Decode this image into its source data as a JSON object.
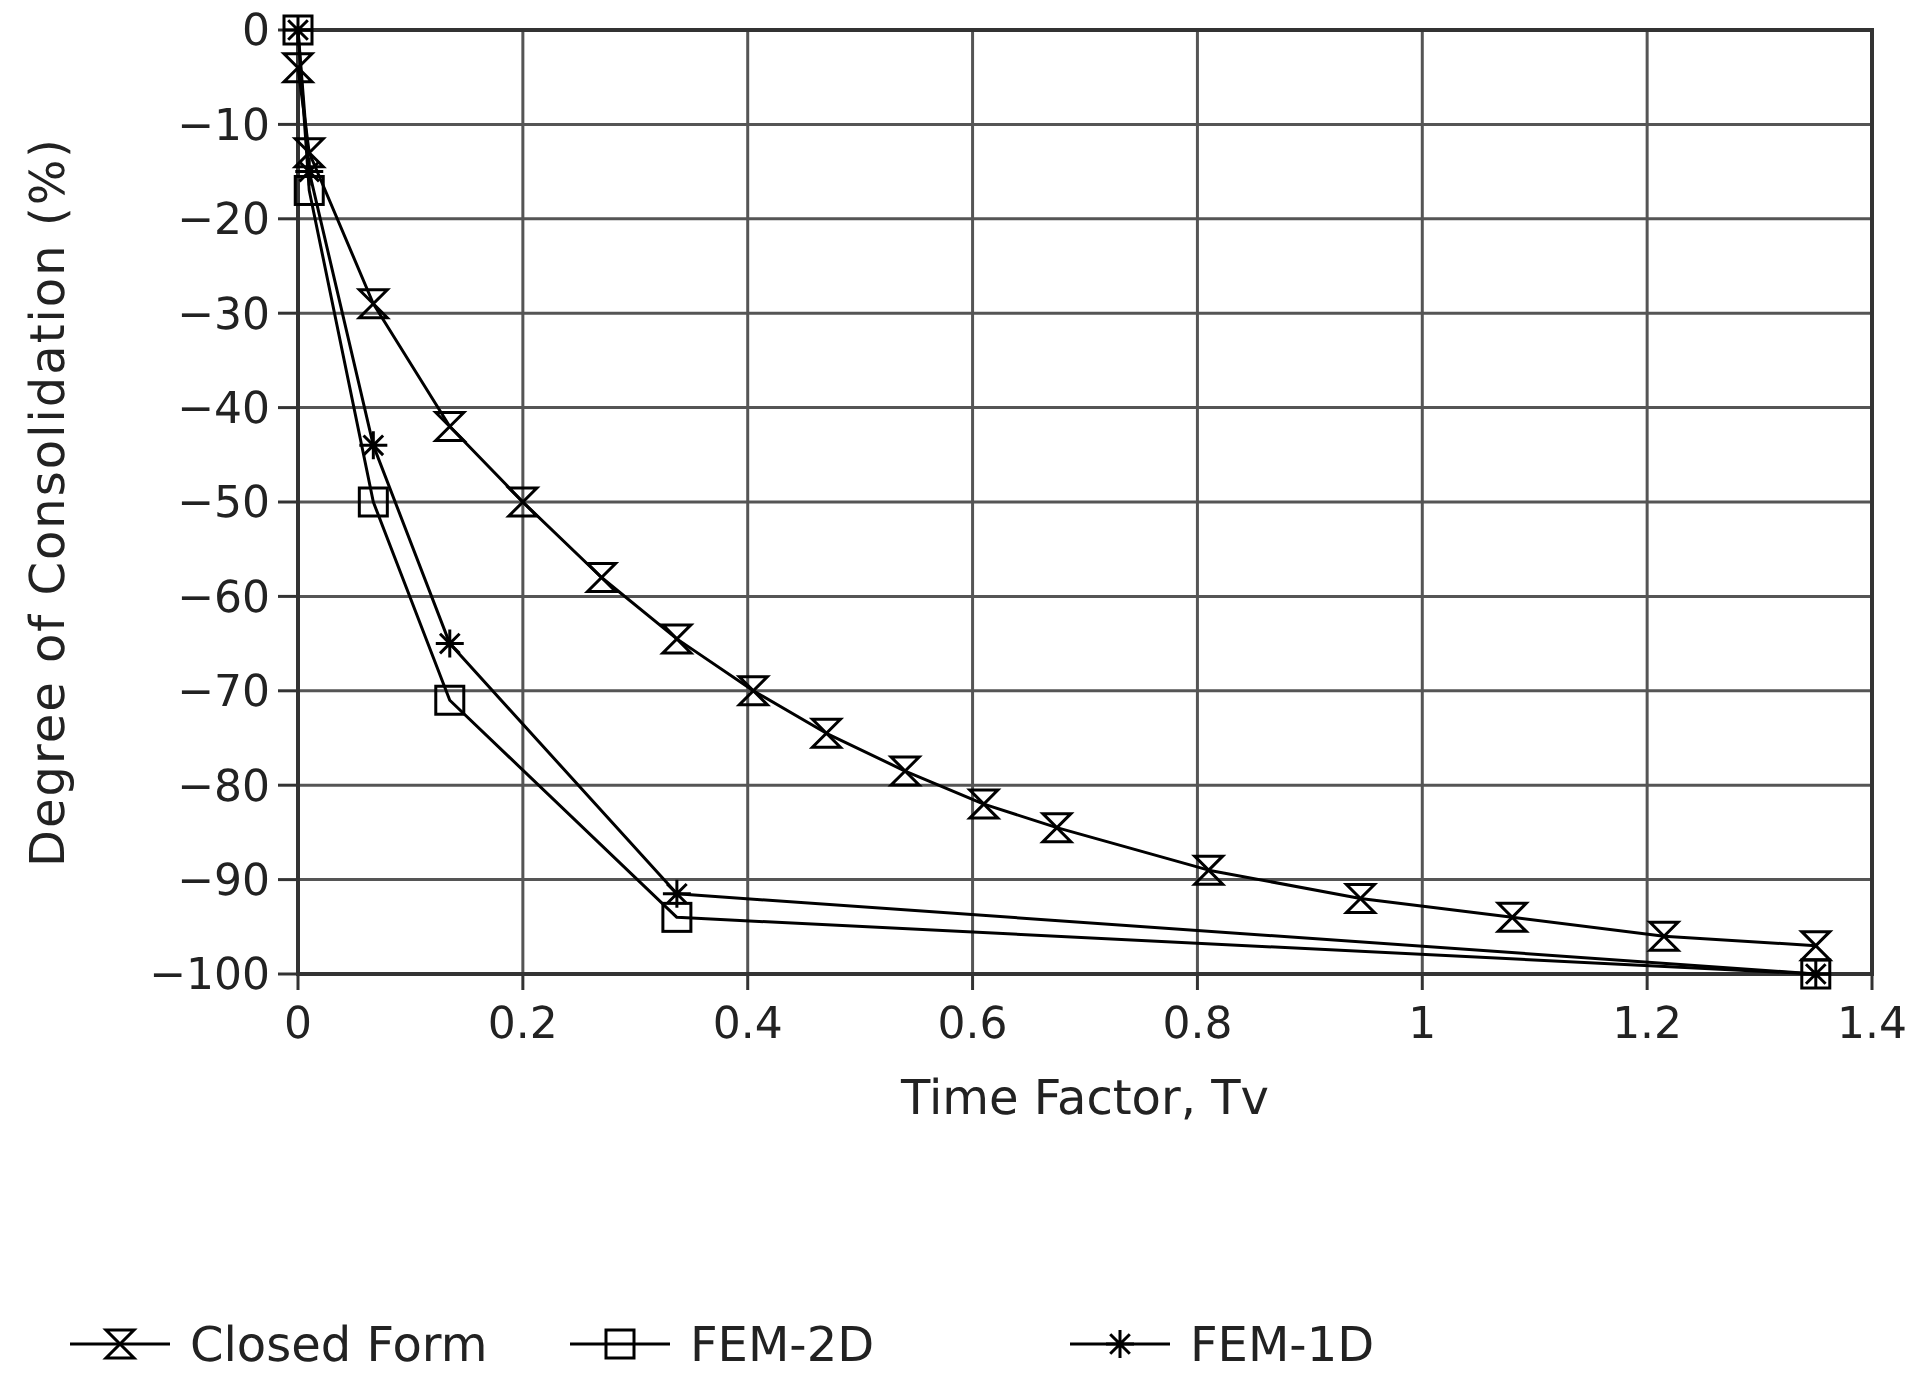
{
  "chart_data": {
    "type": "line",
    "xlabel": "Time Factor,  Tv",
    "ylabel": "Degree of Consolidation (%)",
    "xlim": [
      0,
      1.4
    ],
    "xticks": [
      0,
      0.2,
      0.4,
      0.6,
      0.8,
      1,
      1.2,
      1.4
    ],
    "ylim": [
      -100,
      0
    ],
    "yticks": [
      -100,
      -90,
      -80,
      -70,
      -60,
      -50,
      -40,
      -30,
      -20,
      -10,
      0
    ],
    "grid": true,
    "legend": "bottom",
    "line_style": "solid",
    "series": [
      {
        "name": "Closed Form",
        "color": "#000000",
        "marker": "diamond",
        "x": [
          0,
          0.01,
          0.067,
          0.135,
          0.2,
          0.27,
          0.337,
          0.405,
          0.47,
          0.54,
          0.61,
          0.675,
          0.81,
          0.945,
          1.08,
          1.215,
          1.35
        ],
        "values": [
          -4,
          -13,
          -29,
          -42,
          -50,
          -58,
          -64.5,
          -70,
          -74.5,
          -78.5,
          -82,
          -84.5,
          -89,
          -92,
          -94,
          -96,
          -97
        ]
      },
      {
        "name": "FEM-2D",
        "color": "#000000",
        "marker": "square",
        "x": [
          0,
          0.01,
          0.067,
          0.135,
          0.337,
          1.35
        ],
        "values": [
          0,
          -17,
          -50,
          -71,
          -94,
          -100
        ]
      },
      {
        "name": "FEM-1D",
        "color": "#000000",
        "marker": "cross",
        "x": [
          0,
          0.01,
          0.067,
          0.135,
          0.337,
          1.35
        ],
        "values": [
          0,
          -15,
          -44,
          -65,
          -91.5,
          -100
        ]
      }
    ]
  }
}
